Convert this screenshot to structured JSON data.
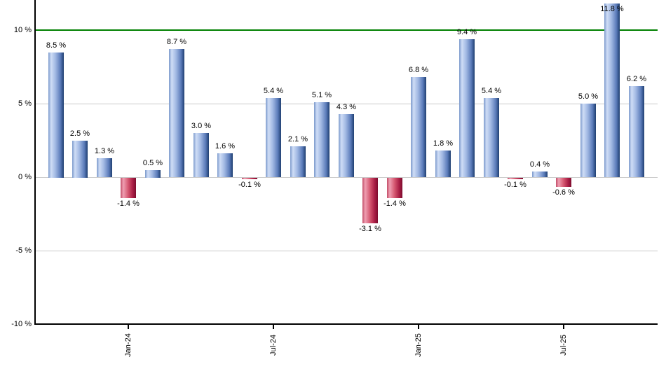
{
  "chart_data": {
    "type": "bar",
    "title": "",
    "xlabel": "",
    "ylabel": "",
    "values": [
      8.5,
      2.5,
      1.3,
      -1.4,
      0.5,
      8.7,
      3.0,
      1.6,
      -0.1,
      5.4,
      2.1,
      5.1,
      4.3,
      -3.1,
      -1.4,
      6.8,
      1.8,
      9.4,
      5.4,
      -0.1,
      0.4,
      -0.6,
      5.0,
      11.8,
      6.2
    ],
    "bar_labels": [
      "8.5 %",
      "2.5 %",
      "1.3 %",
      "-1.4 %",
      "0.5 %",
      "8.7 %",
      "3.0 %",
      "1.6 %",
      "-0.1 %",
      "5.4 %",
      "2.1 %",
      "5.1 %",
      "4.3 %",
      "-3.1 %",
      "-1.4 %",
      "6.8 %",
      "1.8 %",
      "9.4 %",
      "5.4 %",
      "-0.1 %",
      "0.4 %",
      "-0.6 %",
      "5.0 %",
      "11.8 %",
      "6.2 %"
    ],
    "y_ticks": [
      {
        "label": "10 %",
        "value": 10
      },
      {
        "label": "5 %",
        "value": 5
      },
      {
        "label": "0 %",
        "value": 0
      },
      {
        "label": "-5 %",
        "value": -5
      },
      {
        "label": "-10 %",
        "value": -10
      }
    ],
    "x_ticks": [
      {
        "label": "Jan-24",
        "bar_index": 3
      },
      {
        "label": "Jul-24",
        "bar_index": 9
      },
      {
        "label": "Jan-25",
        "bar_index": 15
      },
      {
        "label": "Jul-25",
        "bar_index": 21
      }
    ],
    "ylim": [
      -10,
      12.1
    ],
    "grid": true,
    "legend": null,
    "reference_line": {
      "value": 10,
      "color": "#008000"
    },
    "colors": {
      "positive_bar_edge": "#7b99cc",
      "positive_bar_highlight": "#cfddf6",
      "positive_bar_mid": "#5c7cba",
      "positive_bar_dark": "#1f3f71",
      "negative_bar_edge": "#c24d68",
      "negative_bar_highlight": "#ef9fb2",
      "negative_bar_mid": "#a81d44",
      "negative_bar_dark": "#7c0c2e",
      "gridline": "#c9c9c9",
      "axis": "#000000",
      "label_text": "#000000",
      "background": "#ffffff"
    }
  }
}
